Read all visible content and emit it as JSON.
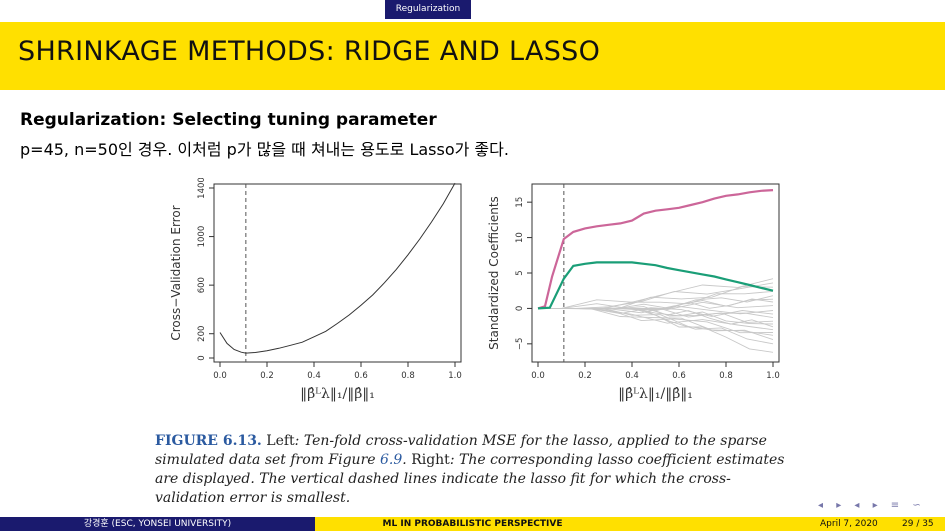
{
  "header": {
    "section": "Regularization"
  },
  "title": "SHRINKAGE METHODS: RIDGE AND LASSO",
  "subheading": "Regularization: Selecting tuning parameter",
  "body_text": "p=45, n=50인 경우. 이처럼 p가 많을 때 쳐내는 용도로 Lasso가 좋다.",
  "chart_data": [
    {
      "type": "line",
      "title": "",
      "xlabel": "‖β̂ᴸλ‖₁/‖β̂‖₁",
      "ylabel": "Cross−Validation Error",
      "xlim": [
        0.0,
        1.0
      ],
      "ylim": [
        0,
        1400
      ],
      "x_ticks": [
        "0.0",
        "0.2",
        "0.4",
        "0.6",
        "0.8",
        "1.0"
      ],
      "y_ticks": [
        "0",
        "200",
        "600",
        "1000",
        "1400"
      ],
      "vline": 0.11,
      "series": [
        {
          "x": [
            0.0,
            0.03,
            0.06,
            0.09,
            0.11,
            0.15,
            0.2,
            0.25,
            0.3,
            0.35,
            0.4,
            0.45,
            0.5,
            0.55,
            0.6,
            0.65,
            0.7,
            0.75,
            0.8,
            0.85,
            0.9,
            0.95,
            1.0
          ],
          "y": [
            210,
            120,
            70,
            48,
            40,
            45,
            60,
            80,
            105,
            130,
            175,
            220,
            285,
            355,
            435,
            520,
            620,
            730,
            850,
            980,
            1120,
            1270,
            1440
          ]
        }
      ]
    },
    {
      "type": "line",
      "title": "",
      "xlabel": "‖β̂ᴸλ‖₁/‖β̂‖₁",
      "ylabel": "Standardized Coefficients",
      "xlim": [
        0.0,
        1.0
      ],
      "ylim": [
        -7,
        17
      ],
      "x_ticks": [
        "0.0",
        "0.2",
        "0.4",
        "0.6",
        "0.8",
        "1.0"
      ],
      "y_ticks": [
        "−5",
        "0",
        "5",
        "10",
        "15"
      ],
      "vline": 0.11,
      "series": [
        {
          "color": "#cc6699",
          "x": [
            0.0,
            0.03,
            0.06,
            0.11,
            0.15,
            0.2,
            0.25,
            0.3,
            0.35,
            0.4,
            0.45,
            0.5,
            0.55,
            0.6,
            0.65,
            0.7,
            0.75,
            0.8,
            0.85,
            0.9,
            0.95,
            1.0
          ],
          "y": [
            0,
            0.3,
            4.5,
            9.8,
            10.8,
            11.3,
            11.6,
            11.8,
            12.0,
            12.4,
            13.4,
            13.8,
            14.0,
            14.2,
            14.6,
            15.0,
            15.5,
            15.9,
            16.1,
            16.4,
            16.6,
            16.7
          ]
        },
        {
          "color": "#1a9e77",
          "x": [
            0.0,
            0.05,
            0.11,
            0.15,
            0.2,
            0.25,
            0.3,
            0.35,
            0.4,
            0.45,
            0.5,
            0.55,
            0.6,
            0.65,
            0.7,
            0.75,
            0.8,
            0.85,
            0.9,
            0.95,
            1.0
          ],
          "y": [
            0,
            0.1,
            4.2,
            6.0,
            6.3,
            6.5,
            6.5,
            6.5,
            6.5,
            6.3,
            6.1,
            5.7,
            5.4,
            5.1,
            4.8,
            4.5,
            4.1,
            3.7,
            3.3,
            2.9,
            2.5
          ]
        }
      ]
    }
  ],
  "caption": {
    "label": "FIGURE 6.13.",
    "left_word": "Left",
    "text_1": ": Ten-fold cross-validation MSE for the lasso, applied to the sparse simulated data set from Figure ",
    "fig_ref": "6.9",
    "text_2": ". ",
    "right_word": "Right",
    "text_3": ": The corresponding lasso coefficient estimates are displayed. The vertical dashed lines indicate the lasso fit for which the cross-validation error is smallest."
  },
  "footer": {
    "author": "강경훈 (ESC, YONSEI UNIVERSITY)",
    "course": "ML IN PROBABILISTIC PERSPECTIVE",
    "date": "April 7, 2020",
    "page": "29 / 35"
  }
}
